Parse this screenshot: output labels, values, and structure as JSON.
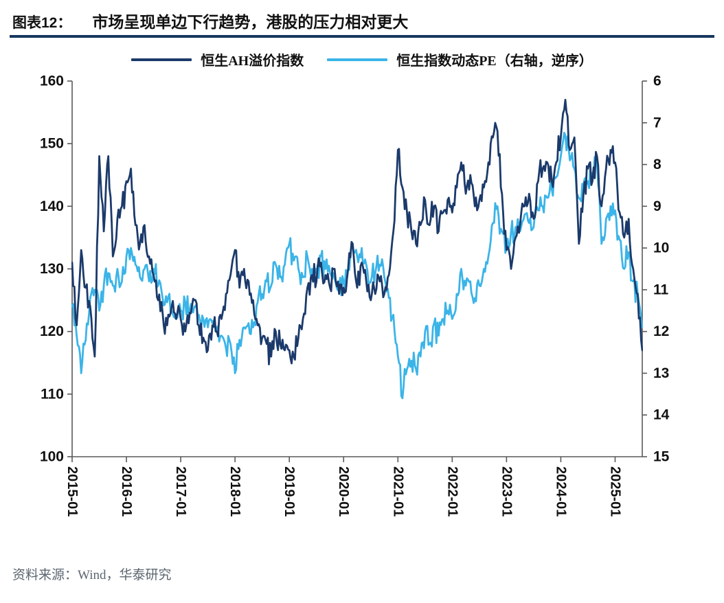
{
  "title": {
    "number": "图表12：",
    "text": "市场呈现单边下行趋势，港股的压力相对更大"
  },
  "legend": {
    "position": "top",
    "items": [
      {
        "label": "恒生AH溢价指数",
        "color": "#1B3A6B"
      },
      {
        "label": "恒生指数动态PE（右轴，逆序）",
        "color": "#3BB4E8"
      }
    ]
  },
  "source": {
    "label": "资料来源：",
    "text": "Wind，华泰研究"
  },
  "colors": {
    "navy": "#1B3A6B",
    "light_blue": "#3BB4E8",
    "title_rule": "#17375E",
    "axis": "#595959",
    "source_text": "#5C6670"
  },
  "chart_data": {
    "type": "line",
    "title": "市场呈现单边下行趋势，港股的压力相对更大",
    "grid": false,
    "x_start": "2015-01",
    "x_interval": "monthly",
    "x_ticks": [
      {
        "label": "2015-01",
        "i": 0
      },
      {
        "label": "2016-01",
        "i": 12
      },
      {
        "label": "2017-01",
        "i": 24
      },
      {
        "label": "2018-01",
        "i": 36
      },
      {
        "label": "2019-01",
        "i": 48
      },
      {
        "label": "2020-01",
        "i": 60
      },
      {
        "label": "2021-01",
        "i": 72
      },
      {
        "label": "2022-01",
        "i": 84
      },
      {
        "label": "2023-01",
        "i": 96
      },
      {
        "label": "2024-01",
        "i": 108
      },
      {
        "label": "2025-01",
        "i": 120
      }
    ],
    "left_axis": {
      "min": 100,
      "max": 160,
      "ticks": [
        100,
        110,
        120,
        130,
        140,
        150,
        160
      ]
    },
    "right_axis": {
      "min": 6,
      "max": 15,
      "reversed": true,
      "ticks": [
        6,
        7,
        8,
        9,
        10,
        11,
        12,
        13,
        14,
        15
      ]
    },
    "series": [
      {
        "name": "恒生AH溢价指数",
        "axis": "left",
        "color": "#1B3A6B",
        "values": [
          131,
          121,
          133,
          127,
          124,
          116,
          148,
          136,
          148,
          132,
          138,
          140,
          144,
          146,
          137,
          134,
          137,
          132,
          129,
          125,
          123,
          121,
          124,
          122,
          122,
          120,
          123,
          125,
          121,
          119,
          117,
          121,
          120,
          122,
          126,
          129,
          133,
          127,
          130,
          128,
          125,
          121,
          119,
          118,
          116,
          120,
          118,
          117,
          117,
          116,
          119,
          122,
          127,
          129,
          128,
          131,
          129,
          127,
          130,
          126,
          127,
          130,
          134,
          127,
          131,
          128,
          125,
          126,
          128,
          126,
          129,
          136,
          149,
          143,
          139,
          136,
          134,
          137,
          141,
          137,
          140,
          136,
          139,
          141,
          139,
          143,
          147,
          142,
          145,
          140,
          141,
          143,
          147,
          151,
          152,
          142,
          133,
          130,
          135,
          137,
          140,
          142,
          138,
          144,
          146,
          147,
          144,
          147,
          151,
          157,
          149,
          151,
          134,
          142,
          146,
          144,
          148,
          140,
          146,
          149,
          147,
          139,
          135,
          138,
          130,
          126,
          117
        ]
      },
      {
        "name": "恒生指数动态PE（右轴，逆序）",
        "axis": "right",
        "color": "#3BB4E8",
        "values": [
          11.4,
          12.1,
          13.0,
          12.2,
          11.2,
          11.0,
          11.5,
          10.9,
          10.6,
          10.9,
          10.5,
          10.8,
          10.2,
          10.0,
          10.4,
          10.7,
          10.5,
          10.8,
          10.5,
          10.9,
          11.2,
          11.3,
          11.5,
          11.7,
          11.5,
          11.3,
          11.5,
          11.4,
          11.6,
          11.7,
          11.9,
          11.8,
          11.9,
          12.1,
          12.4,
          12.3,
          13.0,
          12.2,
          11.9,
          11.8,
          11.9,
          11.3,
          11.1,
          10.8,
          10.9,
          10.4,
          10.7,
          10.4,
          9.9,
          10.3,
          10.5,
          10.7,
          10.2,
          10.5,
          10.6,
          10.2,
          10.5,
          10.6,
          10.7,
          10.9,
          10.8,
          10.5,
          9.9,
          10.2,
          10.0,
          10.4,
          10.8,
          10.6,
          10.4,
          10.7,
          11.2,
          11.6,
          12.6,
          13.6,
          12.9,
          12.7,
          12.9,
          12.6,
          12.0,
          12.3,
          11.8,
          12.1,
          11.7,
          11.5,
          11.7,
          11.1,
          10.5,
          10.9,
          10.8,
          11.2,
          10.9,
          10.5,
          10.2,
          9.4,
          9.0,
          9.6,
          10.0,
          9.6,
          9.5,
          9.6,
          9.2,
          9.4,
          9.5,
          9.1,
          9.0,
          8.8,
          8.6,
          8.3,
          7.8,
          7.3,
          7.9,
          8.1,
          8.8,
          8.5,
          8.4,
          8.2,
          7.9,
          9.9,
          9.3,
          9.0,
          9.1,
          9.8,
          10.5,
          10.1,
          10.8,
          11.1,
          11.9
        ]
      }
    ]
  }
}
